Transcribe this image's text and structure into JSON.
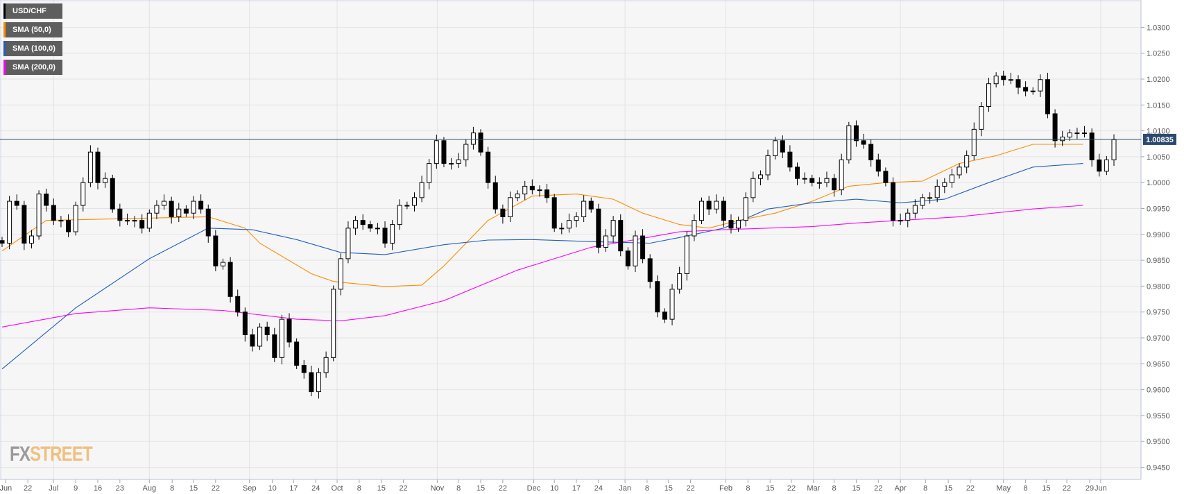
{
  "legend": [
    {
      "label": "USD/CHF",
      "color": "#000000"
    },
    {
      "label": "SMA (50,0)",
      "color": "#ff8c00"
    },
    {
      "label": "SMA (100,0)",
      "color": "#1f5fbf"
    },
    {
      "label": "SMA (200,0)",
      "color": "#ff00ff"
    }
  ],
  "logo": {
    "fx": "FX",
    "street": "STREET"
  },
  "chart_data": {
    "type": "candlestick",
    "symbol": "USD/CHF",
    "ylim": [
      0.9425,
      1.035
    ],
    "yticks": [
      1.03,
      1.025,
      1.02,
      1.015,
      1.01,
      1.005,
      1.0,
      0.995,
      0.99,
      0.985,
      0.98,
      0.975,
      0.97,
      0.965,
      0.96,
      0.955,
      0.95,
      0.945
    ],
    "current_price": 1.00835,
    "current_price_label": "1.00835",
    "wick": 0.0012,
    "closes": [
      0.9883,
      0.9964,
      0.9956,
      0.9883,
      0.9897,
      0.9978,
      0.9956,
      0.9927,
      0.9927,
      0.9905,
      0.9956,
      1.0,
      1.0059,
      1.0,
      1.0008,
      0.9949,
      0.9927,
      0.9927,
      0.9927,
      0.9912,
      0.9941,
      0.9956,
      0.9964,
      0.9934,
      0.9949,
      0.9941,
      0.9964,
      0.9949,
      0.9897,
      0.9839,
      0.9846,
      0.978,
      0.975,
      0.9706,
      0.9684,
      0.9721,
      0.9706,
      0.9662,
      0.9736,
      0.9692,
      0.9647,
      0.9633,
      0.9596,
      0.9633,
      0.9662,
      0.9794,
      0.9853,
      0.9912,
      0.9927,
      0.9919,
      0.9912,
      0.9912,
      0.9883,
      0.9919,
      0.9956,
      0.9956,
      0.9971,
      1.0,
      1.0037,
      1.0081,
      1.0037,
      1.0037,
      1.0044,
      1.0074,
      1.0096,
      1.0059,
      1.0,
      0.9949,
      0.9934,
      0.9971,
      0.9978,
      0.9993,
      0.9986,
      0.9986,
      0.9971,
      0.9912,
      0.9912,
      0.9927,
      0.9934,
      0.9964,
      0.9949,
      0.9875,
      0.9897,
      0.9927,
      0.9868,
      0.9839,
      0.9897,
      0.9853,
      0.9809,
      0.975,
      0.9736,
      0.9794,
      0.9824,
      0.9897,
      0.9927,
      0.9964,
      0.9949,
      0.9964,
      0.9927,
      0.9912,
      0.9927,
      0.9971,
      1.0008,
      1.0015,
      1.0052,
      1.0081,
      1.0059,
      1.003,
      1.0008,
      1.0008,
      1.0,
      1.0,
      1.0008,
      0.9986,
      1.0044,
      1.011,
      1.0081,
      1.0074,
      1.0044,
      1.0022,
      1.0,
      0.9927,
      0.9927,
      0.9941,
      0.9956,
      0.9971,
      0.9971,
      0.9993,
      1.0,
      1.0015,
      1.003,
      1.0052,
      1.0103,
      1.0147,
      1.0191,
      1.0206,
      1.0199,
      1.0199,
      1.0184,
      1.0177,
      1.0177,
      1.0199,
      1.0133,
      1.0081,
      1.0088,
      1.0096,
      1.0096,
      1.0096,
      1.0044,
      1.0022,
      1.0044,
      1.0083
    ],
    "sma": [
      {
        "name": "SMA (50,0)",
        "color": "#ff8c00",
        "points": [
          [
            0,
            0.9868
          ],
          [
            6,
            0.9927
          ],
          [
            28,
            0.9934
          ],
          [
            33,
            0.9912
          ],
          [
            35,
            0.9883
          ],
          [
            42,
            0.9824
          ],
          [
            45,
            0.9809
          ],
          [
            52,
            0.9799
          ],
          [
            57,
            0.9802
          ],
          [
            60,
            0.9839
          ],
          [
            66,
            0.9927
          ],
          [
            72,
            0.9974
          ],
          [
            78,
            0.9978
          ],
          [
            83,
            0.9968
          ],
          [
            87,
            0.9941
          ],
          [
            92,
            0.9919
          ],
          [
            96,
            0.9912
          ],
          [
            100,
            0.9927
          ],
          [
            105,
            0.9941
          ],
          [
            110,
            0.9964
          ],
          [
            115,
            0.9993
          ],
          [
            120,
            1.0
          ],
          [
            125,
            1.0003
          ],
          [
            130,
            1.0037
          ],
          [
            135,
            1.0052
          ],
          [
            140,
            1.0074
          ],
          [
            146.8,
            1.0074
          ]
        ]
      },
      {
        "name": "SMA (100,0)",
        "color": "#1f5fbf",
        "points": [
          [
            0,
            0.964
          ],
          [
            10,
            0.9758
          ],
          [
            20,
            0.9853
          ],
          [
            28,
            0.9912
          ],
          [
            34,
            0.9909
          ],
          [
            40,
            0.989
          ],
          [
            46,
            0.9865
          ],
          [
            52,
            0.9861
          ],
          [
            60,
            0.988
          ],
          [
            66,
            0.9889
          ],
          [
            72,
            0.989
          ],
          [
            80,
            0.9886
          ],
          [
            88,
            0.9883
          ],
          [
            92,
            0.9894
          ],
          [
            98,
            0.9912
          ],
          [
            104,
            0.9949
          ],
          [
            110,
            0.9961
          ],
          [
            116,
            0.9968
          ],
          [
            122,
            0.9961
          ],
          [
            128,
            0.9968
          ],
          [
            134,
            1.0
          ],
          [
            140,
            1.003
          ],
          [
            146.8,
            1.0037
          ]
        ]
      },
      {
        "name": "SMA (200,0)",
        "color": "#ff00ff",
        "points": [
          [
            0,
            0.9721
          ],
          [
            10,
            0.9747
          ],
          [
            20,
            0.9758
          ],
          [
            30,
            0.9753
          ],
          [
            40,
            0.9736
          ],
          [
            46,
            0.9733
          ],
          [
            52,
            0.9743
          ],
          [
            60,
            0.9772
          ],
          [
            70,
            0.9831
          ],
          [
            80,
            0.9875
          ],
          [
            86,
            0.989
          ],
          [
            92,
            0.9905
          ],
          [
            98,
            0.9909
          ],
          [
            104,
            0.9912
          ],
          [
            110,
            0.9915
          ],
          [
            116,
            0.9922
          ],
          [
            122,
            0.9927
          ],
          [
            130,
            0.9934
          ],
          [
            140,
            0.9949
          ],
          [
            146.8,
            0.9956
          ]
        ]
      }
    ],
    "xlabels": [
      [
        "Jun",
        0.5,
        false
      ],
      [
        "22",
        3.5,
        false
      ],
      [
        "Jul",
        7,
        true
      ],
      [
        "9",
        10,
        false
      ],
      [
        "16",
        13,
        false
      ],
      [
        "23",
        16,
        false
      ],
      [
        "Aug",
        20,
        true
      ],
      [
        "8",
        23.1,
        false
      ],
      [
        "15",
        26,
        false
      ],
      [
        "22",
        29,
        false
      ],
      [
        "Sep",
        33.6,
        true
      ],
      [
        "10",
        36.7,
        false
      ],
      [
        "17",
        39.6,
        false
      ],
      [
        "24",
        42.6,
        false
      ],
      [
        "Oct",
        45.5,
        true
      ],
      [
        "8",
        48.5,
        false
      ],
      [
        "15",
        51.5,
        false
      ],
      [
        "22",
        54.5,
        false
      ],
      [
        "Nov",
        59.1,
        true
      ],
      [
        "8",
        62,
        false
      ],
      [
        "15",
        65,
        false
      ],
      [
        "22",
        68,
        false
      ],
      [
        "Dec",
        72.2,
        true
      ],
      [
        "10",
        75,
        false
      ],
      [
        "17",
        78,
        false
      ],
      [
        "24",
        81,
        false
      ],
      [
        "Jan",
        84.6,
        true
      ],
      [
        "8",
        87.6,
        false
      ],
      [
        "15",
        90.5,
        false
      ],
      [
        "22",
        93.5,
        false
      ],
      [
        "Feb",
        98.3,
        true
      ],
      [
        "8",
        101.3,
        false
      ],
      [
        "15",
        104.3,
        false
      ],
      [
        "22",
        107.2,
        false
      ],
      [
        "Mar",
        110.2,
        true
      ],
      [
        "8",
        113,
        false
      ],
      [
        "15",
        116,
        false
      ],
      [
        "22",
        119,
        false
      ],
      [
        "Apr",
        122,
        true
      ],
      [
        "8",
        125.4,
        false
      ],
      [
        "15",
        128.5,
        false
      ],
      [
        "22",
        131.5,
        false
      ],
      [
        "May",
        136,
        true
      ],
      [
        "8",
        139,
        false
      ],
      [
        "15",
        141.8,
        false
      ],
      [
        "22",
        144.6,
        false
      ],
      [
        "29",
        147.7,
        false
      ],
      [
        "Jun",
        149.2,
        true
      ]
    ]
  }
}
